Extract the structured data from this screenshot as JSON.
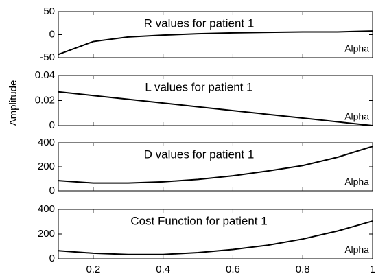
{
  "ylabel": "Amplitude",
  "chart_data": [
    {
      "type": "line",
      "title": "R values for patient 1",
      "xlabel": "Alpha",
      "x": [
        0.1,
        0.2,
        0.3,
        0.4,
        0.5,
        0.6,
        0.7,
        0.8,
        0.9,
        1
      ],
      "values": [
        -43,
        -15,
        -5,
        -1,
        2,
        4,
        5,
        6,
        6,
        8
      ],
      "color": "#000000",
      "xlim": [
        0.1,
        1
      ],
      "ylim": [
        -50,
        50
      ],
      "yticks": [
        -50,
        0,
        50
      ]
    },
    {
      "type": "line",
      "title": "L values for patient 1",
      "xlabel": "Alpha",
      "x": [
        0.1,
        0.2,
        0.3,
        0.4,
        0.5,
        0.6,
        0.7,
        0.8,
        0.9,
        1
      ],
      "values": [
        0.027,
        0.024,
        0.021,
        0.018,
        0.015,
        0.012,
        0.009,
        0.006,
        0.003,
        0
      ],
      "color": "#000000",
      "xlim": [
        0.1,
        1
      ],
      "ylim": [
        0,
        0.04
      ],
      "yticks": [
        0,
        0.02,
        0.04
      ]
    },
    {
      "type": "line",
      "title": "D values for patient 1",
      "xlabel": "Alpha",
      "x": [
        0.1,
        0.2,
        0.3,
        0.4,
        0.5,
        0.6,
        0.7,
        0.8,
        0.9,
        1
      ],
      "values": [
        85,
        65,
        65,
        75,
        95,
        125,
        165,
        210,
        280,
        370
      ],
      "color": "#000000",
      "xlim": [
        0.1,
        1
      ],
      "ylim": [
        0,
        400
      ],
      "yticks": [
        0,
        200,
        400
      ]
    },
    {
      "type": "line",
      "title": "Cost Function for patient 1",
      "xlabel": "Alpha",
      "x": [
        0.1,
        0.2,
        0.3,
        0.4,
        0.5,
        0.6,
        0.7,
        0.8,
        0.9,
        1
      ],
      "values": [
        65,
        45,
        35,
        35,
        50,
        75,
        110,
        160,
        225,
        305
      ],
      "color": "#000000",
      "xlim": [
        0.1,
        1
      ],
      "ylim": [
        0,
        400
      ],
      "yticks": [
        0,
        200,
        400
      ],
      "xticks": [
        0.2,
        0.4,
        0.6,
        0.8,
        1
      ]
    }
  ]
}
